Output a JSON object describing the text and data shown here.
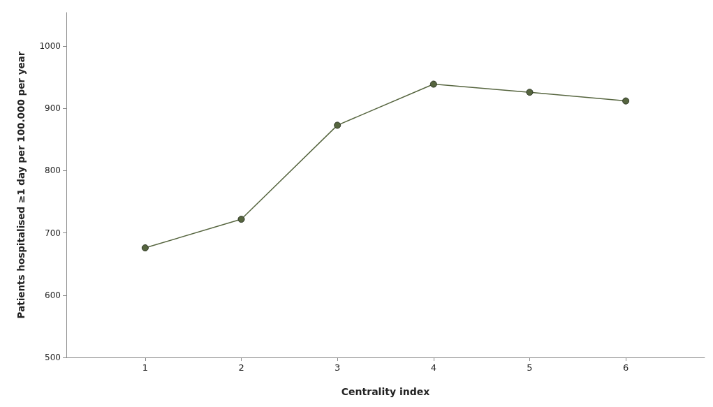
{
  "chart_data": {
    "type": "line",
    "xlabel": "Centrality index",
    "ylabel": "Patients hospitalised ≥1 day per 100.000 per year",
    "x": [
      1,
      2,
      3,
      4,
      5,
      6
    ],
    "series": [
      {
        "color": "#56653f",
        "values": [
          676,
          722,
          873,
          939,
          926,
          912
        ]
      }
    ],
    "xlim": [
      0.18,
      6.82
    ],
    "xticks": [
      1,
      2,
      3,
      4,
      5,
      6
    ],
    "ylim": [
      500,
      1054
    ],
    "yticks": [
      500,
      600,
      700,
      800,
      900,
      1000
    ],
    "grid": false,
    "marker": "circle",
    "line_style": "solid"
  }
}
